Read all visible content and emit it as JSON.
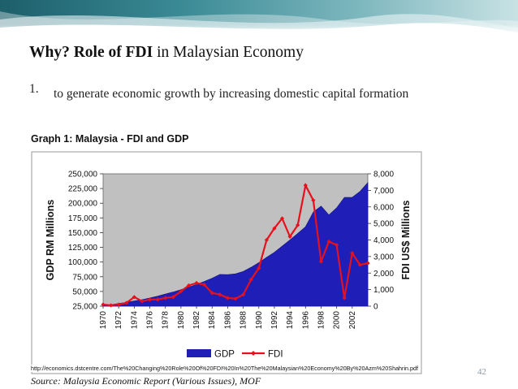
{
  "slide": {
    "title_bold": "Why? Role of FDI",
    "title_rest": " in Malaysian Economy",
    "bullet_number": "1.",
    "bullet_text": "to generate economic growth by increasing domestic capital formation",
    "graph_title": "Graph 1: Malaysia - FDI and GDP",
    "url": "http://economics.dstcentre.com/The%20Changing%20Role%20Of%20FDI%20In%20The%20Malaysian%20Economy%20By%20Azm%20Shahrin.pdf",
    "source": "Source: Malaysia Economic Report (Various Issues), MOF",
    "page_number": "42"
  },
  "colors": {
    "gdp_fill": "#1f1fb8",
    "fdi_line": "#e8101a",
    "plot_bg": "#c0c0c0",
    "banner_teal": "#2f7f8a"
  },
  "chart_data": {
    "type": "area",
    "title": "Graph 1: Malaysia - FDI and GDP",
    "ylabel": "GDP RM Millions",
    "y2label": "FDI US$ Millions",
    "ylim": [
      25000,
      250000
    ],
    "y2lim": [
      0,
      8000
    ],
    "y_ticks": [
      "25,000",
      "50,000",
      "75,000",
      "100,000",
      "125,000",
      "150,000",
      "175,000",
      "200,000",
      "225,000",
      "250,000"
    ],
    "y2_ticks": [
      "0",
      "1,000",
      "2,000",
      "3,000",
      "4,000",
      "5,000",
      "6,000",
      "7,000",
      "8,000"
    ],
    "x_tick_labels": [
      "1970",
      "1972",
      "1974",
      "1976",
      "1978",
      "1980",
      "1982",
      "1984",
      "1986",
      "1988",
      "1990",
      "1992",
      "1994",
      "1996",
      "1998",
      "2000",
      "2002"
    ],
    "x": [
      1970,
      1971,
      1972,
      1973,
      1974,
      1975,
      1976,
      1977,
      1978,
      1979,
      1980,
      1981,
      1982,
      1983,
      1984,
      1985,
      1986,
      1987,
      1988,
      1989,
      1990,
      1991,
      1992,
      1993,
      1994,
      1995,
      1996,
      1997,
      1998,
      1999,
      2000,
      2001,
      2002,
      2003,
      2004
    ],
    "series": [
      {
        "name": "GDP",
        "type": "area",
        "axis": "left",
        "values": [
          26000,
          27500,
          29500,
          31500,
          34000,
          36000,
          39000,
          42000,
          45500,
          49000,
          53000,
          57500,
          62000,
          67000,
          72500,
          79000,
          78500,
          80000,
          84000,
          91000,
          99000,
          108000,
          116500,
          127000,
          137500,
          148500,
          160000,
          185000,
          195000,
          180000,
          192000,
          210000,
          210000,
          220000,
          235000
        ]
      },
      {
        "name": "FDI",
        "type": "line",
        "axis": "right",
        "values": [
          100,
          50,
          100,
          200,
          550,
          300,
          400,
          400,
          500,
          550,
          900,
          1250,
          1400,
          1300,
          800,
          700,
          500,
          450,
          700,
          1600,
          2300,
          4000,
          4700,
          5300,
          4200,
          4900,
          7300,
          6400,
          2700,
          3900,
          3700,
          500,
          3200,
          2500,
          2600
        ]
      }
    ],
    "legend": [
      "GDP",
      "FDI"
    ],
    "legend_position": "bottom",
    "grid": false
  }
}
